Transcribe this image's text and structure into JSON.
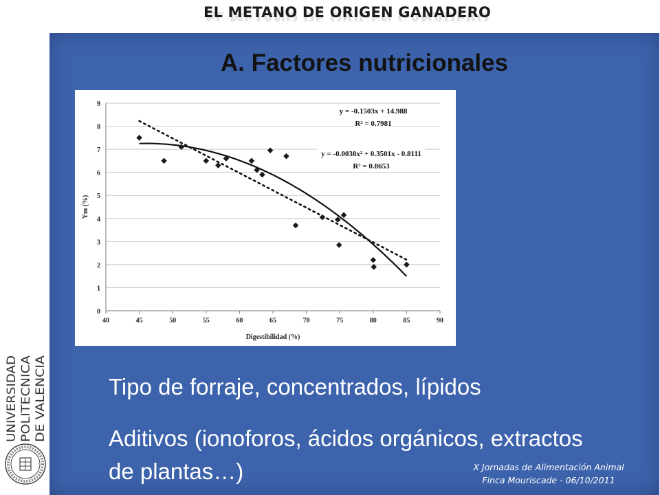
{
  "slide": {
    "top_title": "EL METANO DE ORIGEN GANADERO",
    "section_title": "A. Factores nutricionales",
    "bullets": [
      "Tipo de forraje, concentrados, lípidos",
      "Aditivos (ionoforos, ácidos orgánicos, extractos de plantas…)"
    ],
    "footer": {
      "line1": "X Jornadas de Alimentación Animal",
      "line2": "Finca Mouriscade  -  06/10/2011"
    },
    "logo": {
      "name_lines": [
        "UNIVERSIDAD",
        "POLITECNICA",
        "DE VALENCIA"
      ],
      "seal_icon": "university-seal-icon"
    },
    "colors": {
      "panel": "#3d63ac",
      "text_on_panel": "#ffffff"
    }
  },
  "chart_data": {
    "type": "scatter",
    "xlabel": "Digestibilidad (%)",
    "ylabel": "Ym (%)",
    "xlim": [
      40,
      90
    ],
    "ylim": [
      0,
      9
    ],
    "x_ticks": [
      40,
      45,
      50,
      55,
      60,
      65,
      70,
      75,
      80,
      85,
      90
    ],
    "y_ticks": [
      0,
      1,
      2,
      3,
      4,
      5,
      6,
      7,
      8,
      9
    ],
    "grid": "horizontal",
    "points": [
      [
        45,
        7.5
      ],
      [
        48.7,
        6.5
      ],
      [
        51.3,
        7.1
      ],
      [
        55,
        6.5
      ],
      [
        56.8,
        6.3
      ],
      [
        58,
        6.6
      ],
      [
        61.8,
        6.5
      ],
      [
        62.6,
        6.1
      ],
      [
        63.4,
        5.9
      ],
      [
        64.6,
        6.95
      ],
      [
        67,
        6.7
      ],
      [
        68.4,
        3.7
      ],
      [
        72.4,
        4.05
      ],
      [
        74.7,
        3.95
      ],
      [
        74.9,
        2.85
      ],
      [
        75.6,
        4.15
      ],
      [
        80,
        2.2
      ],
      [
        80.1,
        1.9
      ],
      [
        85,
        2.0
      ]
    ],
    "fits": [
      {
        "kind": "linear",
        "style": "dotted",
        "coef": [
          14.988,
          -0.1503
        ],
        "range": [
          45,
          85
        ],
        "equation": "y = -0.1503x + 14.988",
        "r2_label": "R² = 0.7981"
      },
      {
        "kind": "quadratic",
        "style": "solid",
        "coef": [
          -0.8111,
          0.3501,
          -0.0038
        ],
        "range": [
          45,
          85
        ],
        "equation": "y = -0.0038x² + 0.3501x - 0.8111",
        "r2_label": "R² = 0.8653"
      }
    ]
  }
}
